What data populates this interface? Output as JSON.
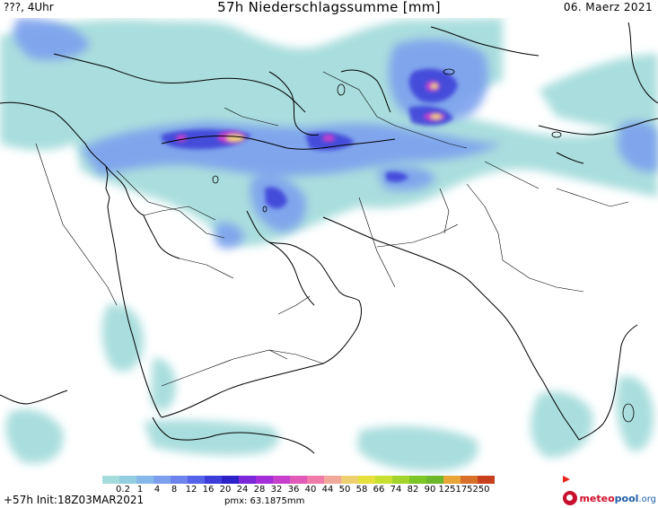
{
  "header": {
    "left": "???, 4Uhr",
    "title": "57h Niederschlagssumme [mm]",
    "right": "06. Maerz 2021"
  },
  "legend": {
    "ticks": [
      "0.2",
      "1",
      "4",
      "8",
      "12",
      "16",
      "20",
      "24",
      "28",
      "32",
      "36",
      "40",
      "44",
      "50",
      "58",
      "66",
      "74",
      "82",
      "90",
      "125",
      "175",
      "250"
    ],
    "colors": [
      "#a6dcdc",
      "#93cfe0",
      "#86b9ea",
      "#7ca0ee",
      "#6c84ec",
      "#5563e8",
      "#3b3ed8",
      "#2c22c8",
      "#7a28d8",
      "#a62ed8",
      "#c640cc",
      "#e25ab8",
      "#f07aa8",
      "#f0a89a",
      "#efd070",
      "#e6e03c",
      "#c8e030",
      "#a2d42c",
      "#7cc628",
      "#6cb82a",
      "#e8a638",
      "#d8702a",
      "#c8401e"
    ]
  },
  "footer": {
    "left": "+57h Init:18Z03MAR2021",
    "pmx": "pmx: 63.1875mm"
  },
  "logo": {
    "part_a": "meteo",
    "part_b": "pool",
    "part_c": ".org"
  }
}
